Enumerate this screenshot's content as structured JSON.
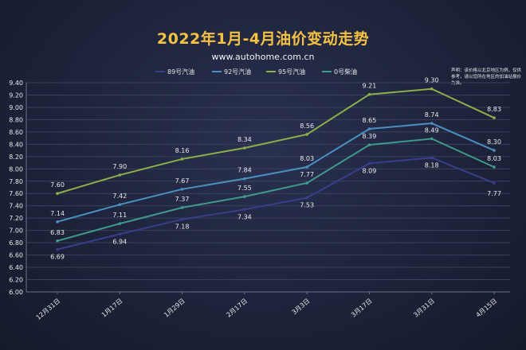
{
  "chart_data": {
    "type": "line",
    "title": "2022年1月-4月油价变动走势",
    "subtitle": "www.autohome.com.cn",
    "note": "声明：该价格以北京地区为例，仅供参考，请以您所在地区的加油站报价为准。",
    "categories": [
      "12月31日",
      "1月17日",
      "1月29日",
      "2月17日",
      "3月3日",
      "3月17日",
      "3月31日",
      "4月15日"
    ],
    "series": [
      {
        "name": "89号汽油",
        "color": "#3a3d8c",
        "values": [
          6.69,
          6.94,
          7.18,
          7.34,
          7.53,
          8.09,
          8.18,
          7.77
        ]
      },
      {
        "name": "92号汽油",
        "color": "#4a8fc2",
        "values": [
          7.14,
          7.42,
          7.67,
          7.84,
          8.03,
          8.65,
          8.74,
          8.3
        ]
      },
      {
        "name": "95号汽油",
        "color": "#8fae4a",
        "values": [
          7.6,
          7.9,
          8.16,
          8.34,
          8.56,
          9.21,
          9.3,
          8.83
        ]
      },
      {
        "name": "0号柴油",
        "color": "#3f9a8c",
        "values": [
          6.83,
          7.11,
          7.37,
          7.55,
          7.77,
          8.39,
          8.49,
          8.03
        ]
      }
    ],
    "ylim": [
      6.0,
      9.4
    ],
    "yticks": [
      "6.00",
      "6.20",
      "6.40",
      "6.60",
      "6.80",
      "7.00",
      "7.20",
      "7.40",
      "7.60",
      "7.80",
      "8.00",
      "8.20",
      "8.40",
      "8.60",
      "8.80",
      "9.00",
      "9.20",
      "9.40"
    ],
    "grid": true,
    "legend": "top"
  }
}
